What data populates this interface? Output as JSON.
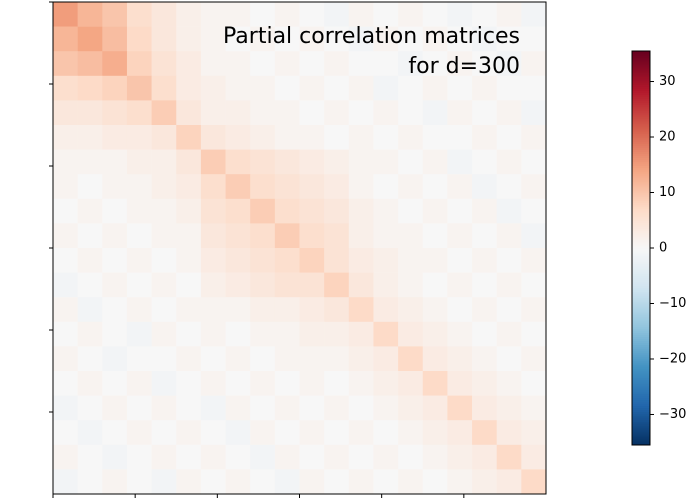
{
  "chart_data": {
    "type": "heatmap",
    "title_lines": [
      "Partial correlation matrices",
      "for d=300"
    ],
    "xlim": [
      0,
      300
    ],
    "ylim": [
      0,
      300
    ],
    "xticks": [
      0,
      50,
      100,
      150,
      200,
      250
    ],
    "yticks": [
      0,
      50,
      100,
      150,
      200,
      250
    ],
    "values": [
      [
        15,
        12,
        10,
        6,
        4,
        2,
        1,
        1,
        0,
        1,
        0,
        -1,
        1,
        0,
        1,
        0,
        -1,
        0,
        1,
        -1
      ],
      [
        12,
        14,
        11,
        7,
        4,
        2,
        1,
        0,
        1,
        0,
        1,
        0,
        -1,
        1,
        0,
        1,
        0,
        -1,
        0,
        0
      ],
      [
        10,
        11,
        13,
        8,
        5,
        3,
        1,
        1,
        0,
        1,
        0,
        1,
        0,
        0,
        -1,
        0,
        1,
        0,
        -1,
        1
      ],
      [
        6,
        7,
        8,
        10,
        6,
        3,
        2,
        1,
        1,
        0,
        1,
        0,
        1,
        -1,
        0,
        1,
        0,
        1,
        0,
        0
      ],
      [
        4,
        4,
        5,
        6,
        9,
        4,
        2,
        2,
        1,
        1,
        0,
        1,
        0,
        1,
        0,
        -1,
        1,
        0,
        1,
        -1
      ],
      [
        2,
        2,
        3,
        3,
        4,
        8,
        4,
        3,
        2,
        1,
        1,
        0,
        1,
        0,
        1,
        0,
        0,
        1,
        0,
        1
      ],
      [
        1,
        1,
        1,
        2,
        2,
        4,
        9,
        6,
        5,
        4,
        3,
        2,
        1,
        1,
        0,
        1,
        -1,
        0,
        1,
        0
      ],
      [
        1,
        0,
        1,
        1,
        2,
        3,
        6,
        9,
        6,
        5,
        4,
        3,
        1,
        0,
        1,
        0,
        1,
        -1,
        0,
        1
      ],
      [
        0,
        1,
        0,
        1,
        1,
        2,
        5,
        6,
        9,
        6,
        5,
        4,
        2,
        1,
        0,
        1,
        0,
        1,
        -1,
        0
      ],
      [
        1,
        0,
        1,
        0,
        1,
        1,
        4,
        5,
        6,
        9,
        6,
        5,
        2,
        1,
        1,
        0,
        1,
        0,
        1,
        -1
      ],
      [
        0,
        1,
        0,
        1,
        0,
        1,
        3,
        4,
        5,
        6,
        8,
        5,
        3,
        2,
        1,
        1,
        0,
        1,
        0,
        1
      ],
      [
        -1,
        0,
        1,
        0,
        1,
        0,
        2,
        3,
        4,
        5,
        5,
        8,
        4,
        2,
        1,
        0,
        1,
        0,
        1,
        0
      ],
      [
        1,
        -1,
        0,
        1,
        0,
        1,
        1,
        1,
        2,
        2,
        3,
        4,
        7,
        3,
        2,
        1,
        0,
        1,
        0,
        1
      ],
      [
        0,
        1,
        0,
        -1,
        1,
        0,
        1,
        0,
        1,
        1,
        2,
        2,
        3,
        7,
        3,
        2,
        1,
        0,
        1,
        0
      ],
      [
        1,
        0,
        -1,
        0,
        0,
        1,
        0,
        1,
        0,
        1,
        1,
        1,
        2,
        3,
        7,
        3,
        2,
        1,
        0,
        1
      ],
      [
        0,
        1,
        0,
        1,
        -1,
        0,
        1,
        0,
        1,
        0,
        1,
        0,
        1,
        2,
        3,
        7,
        3,
        2,
        1,
        0
      ],
      [
        -1,
        0,
        1,
        0,
        1,
        0,
        -1,
        1,
        0,
        1,
        0,
        1,
        0,
        1,
        2,
        3,
        7,
        3,
        2,
        1
      ],
      [
        0,
        -1,
        0,
        1,
        0,
        1,
        0,
        -1,
        1,
        0,
        1,
        0,
        1,
        0,
        1,
        2,
        3,
        7,
        3,
        2
      ],
      [
        1,
        0,
        -1,
        0,
        1,
        0,
        1,
        0,
        -1,
        1,
        0,
        1,
        0,
        1,
        0,
        1,
        2,
        3,
        7,
        3
      ],
      [
        -1,
        0,
        1,
        0,
        -1,
        1,
        0,
        1,
        0,
        -1,
        1,
        0,
        1,
        0,
        1,
        0,
        1,
        2,
        3,
        7
      ]
    ],
    "colorbar": {
      "lim": [
        -35.5,
        35.5
      ],
      "colormap": "RdBu_r",
      "ticks": [
        {
          "value": -30,
          "label": "−30"
        },
        {
          "value": -20,
          "label": "−20"
        },
        {
          "value": -10,
          "label": "−10"
        },
        0,
        10,
        20,
        30
      ]
    }
  }
}
